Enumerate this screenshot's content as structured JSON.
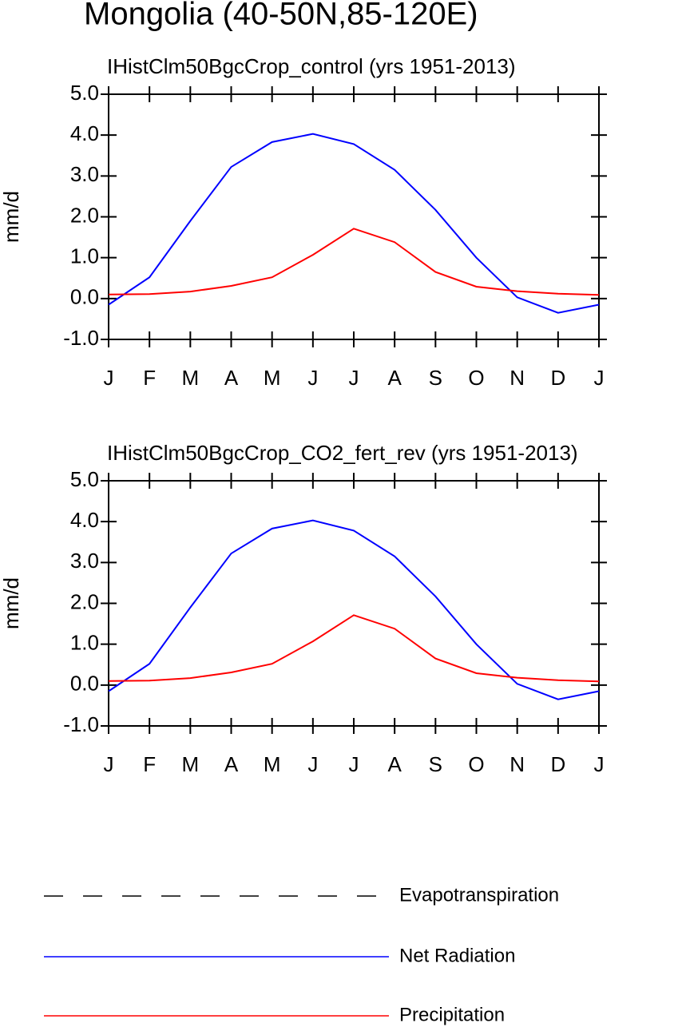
{
  "title": "Mongolia (40-50N,85-120E)",
  "chart_data": [
    {
      "type": "line",
      "title": "IHistClm50BgcCrop_control (yrs 1951-2013)",
      "ylabel": "mm/d",
      "categories": [
        "J",
        "F",
        "M",
        "A",
        "M",
        "J",
        "J",
        "A",
        "S",
        "O",
        "N",
        "D",
        "J"
      ],
      "ylim": [
        -1,
        5
      ],
      "yticks": [
        {
          "value": -1,
          "label": "-1.0"
        },
        {
          "value": 0,
          "label": "0.0"
        },
        {
          "value": 1,
          "label": "1.0"
        },
        {
          "value": 2,
          "label": "2.0"
        },
        {
          "value": 3,
          "label": "3.0"
        },
        {
          "value": 4,
          "label": "4.0"
        },
        {
          "value": 5,
          "label": "5.0"
        }
      ],
      "series": [
        {
          "name": "Evapotranspiration",
          "color": "#000000",
          "dash": "dashed",
          "values": [
            null,
            null,
            null,
            null,
            null,
            null,
            null,
            null,
            null,
            null,
            null,
            null,
            null
          ]
        },
        {
          "name": "Net Radiation",
          "color": "#0000ff",
          "values": [
            -0.15,
            0.52,
            1.9,
            3.22,
            3.83,
            4.03,
            3.78,
            3.15,
            2.17,
            1.0,
            0.03,
            -0.35,
            -0.15
          ]
        },
        {
          "name": "Precipitation",
          "color": "#ff0000",
          "values": [
            0.1,
            0.11,
            0.17,
            0.31,
            0.52,
            1.07,
            1.71,
            1.38,
            0.65,
            0.29,
            0.18,
            0.12,
            0.09
          ]
        }
      ]
    },
    {
      "type": "line",
      "title": "IHistClm50BgcCrop_CO2_fert_rev (yrs 1951-2013)",
      "ylabel": "mm/d",
      "categories": [
        "J",
        "F",
        "M",
        "A",
        "M",
        "J",
        "J",
        "A",
        "S",
        "O",
        "N",
        "D",
        "J"
      ],
      "ylim": [
        -1,
        5
      ],
      "yticks": [
        {
          "value": -1,
          "label": "-1.0"
        },
        {
          "value": 0,
          "label": "0.0"
        },
        {
          "value": 1,
          "label": "1.0"
        },
        {
          "value": 2,
          "label": "2.0"
        },
        {
          "value": 3,
          "label": "3.0"
        },
        {
          "value": 4,
          "label": "4.0"
        },
        {
          "value": 5,
          "label": "5.0"
        }
      ],
      "series": [
        {
          "name": "Evapotranspiration",
          "color": "#000000",
          "dash": "dashed",
          "values": [
            null,
            null,
            null,
            null,
            null,
            null,
            null,
            null,
            null,
            null,
            null,
            null,
            null
          ]
        },
        {
          "name": "Net Radiation",
          "color": "#0000ff",
          "values": [
            -0.15,
            0.52,
            1.9,
            3.22,
            3.83,
            4.03,
            3.78,
            3.15,
            2.17,
            1.0,
            0.03,
            -0.35,
            -0.15
          ]
        },
        {
          "name": "Precipitation",
          "color": "#ff0000",
          "values": [
            0.1,
            0.11,
            0.17,
            0.31,
            0.52,
            1.07,
            1.71,
            1.38,
            0.65,
            0.29,
            0.18,
            0.12,
            0.09
          ]
        }
      ]
    }
  ]
}
